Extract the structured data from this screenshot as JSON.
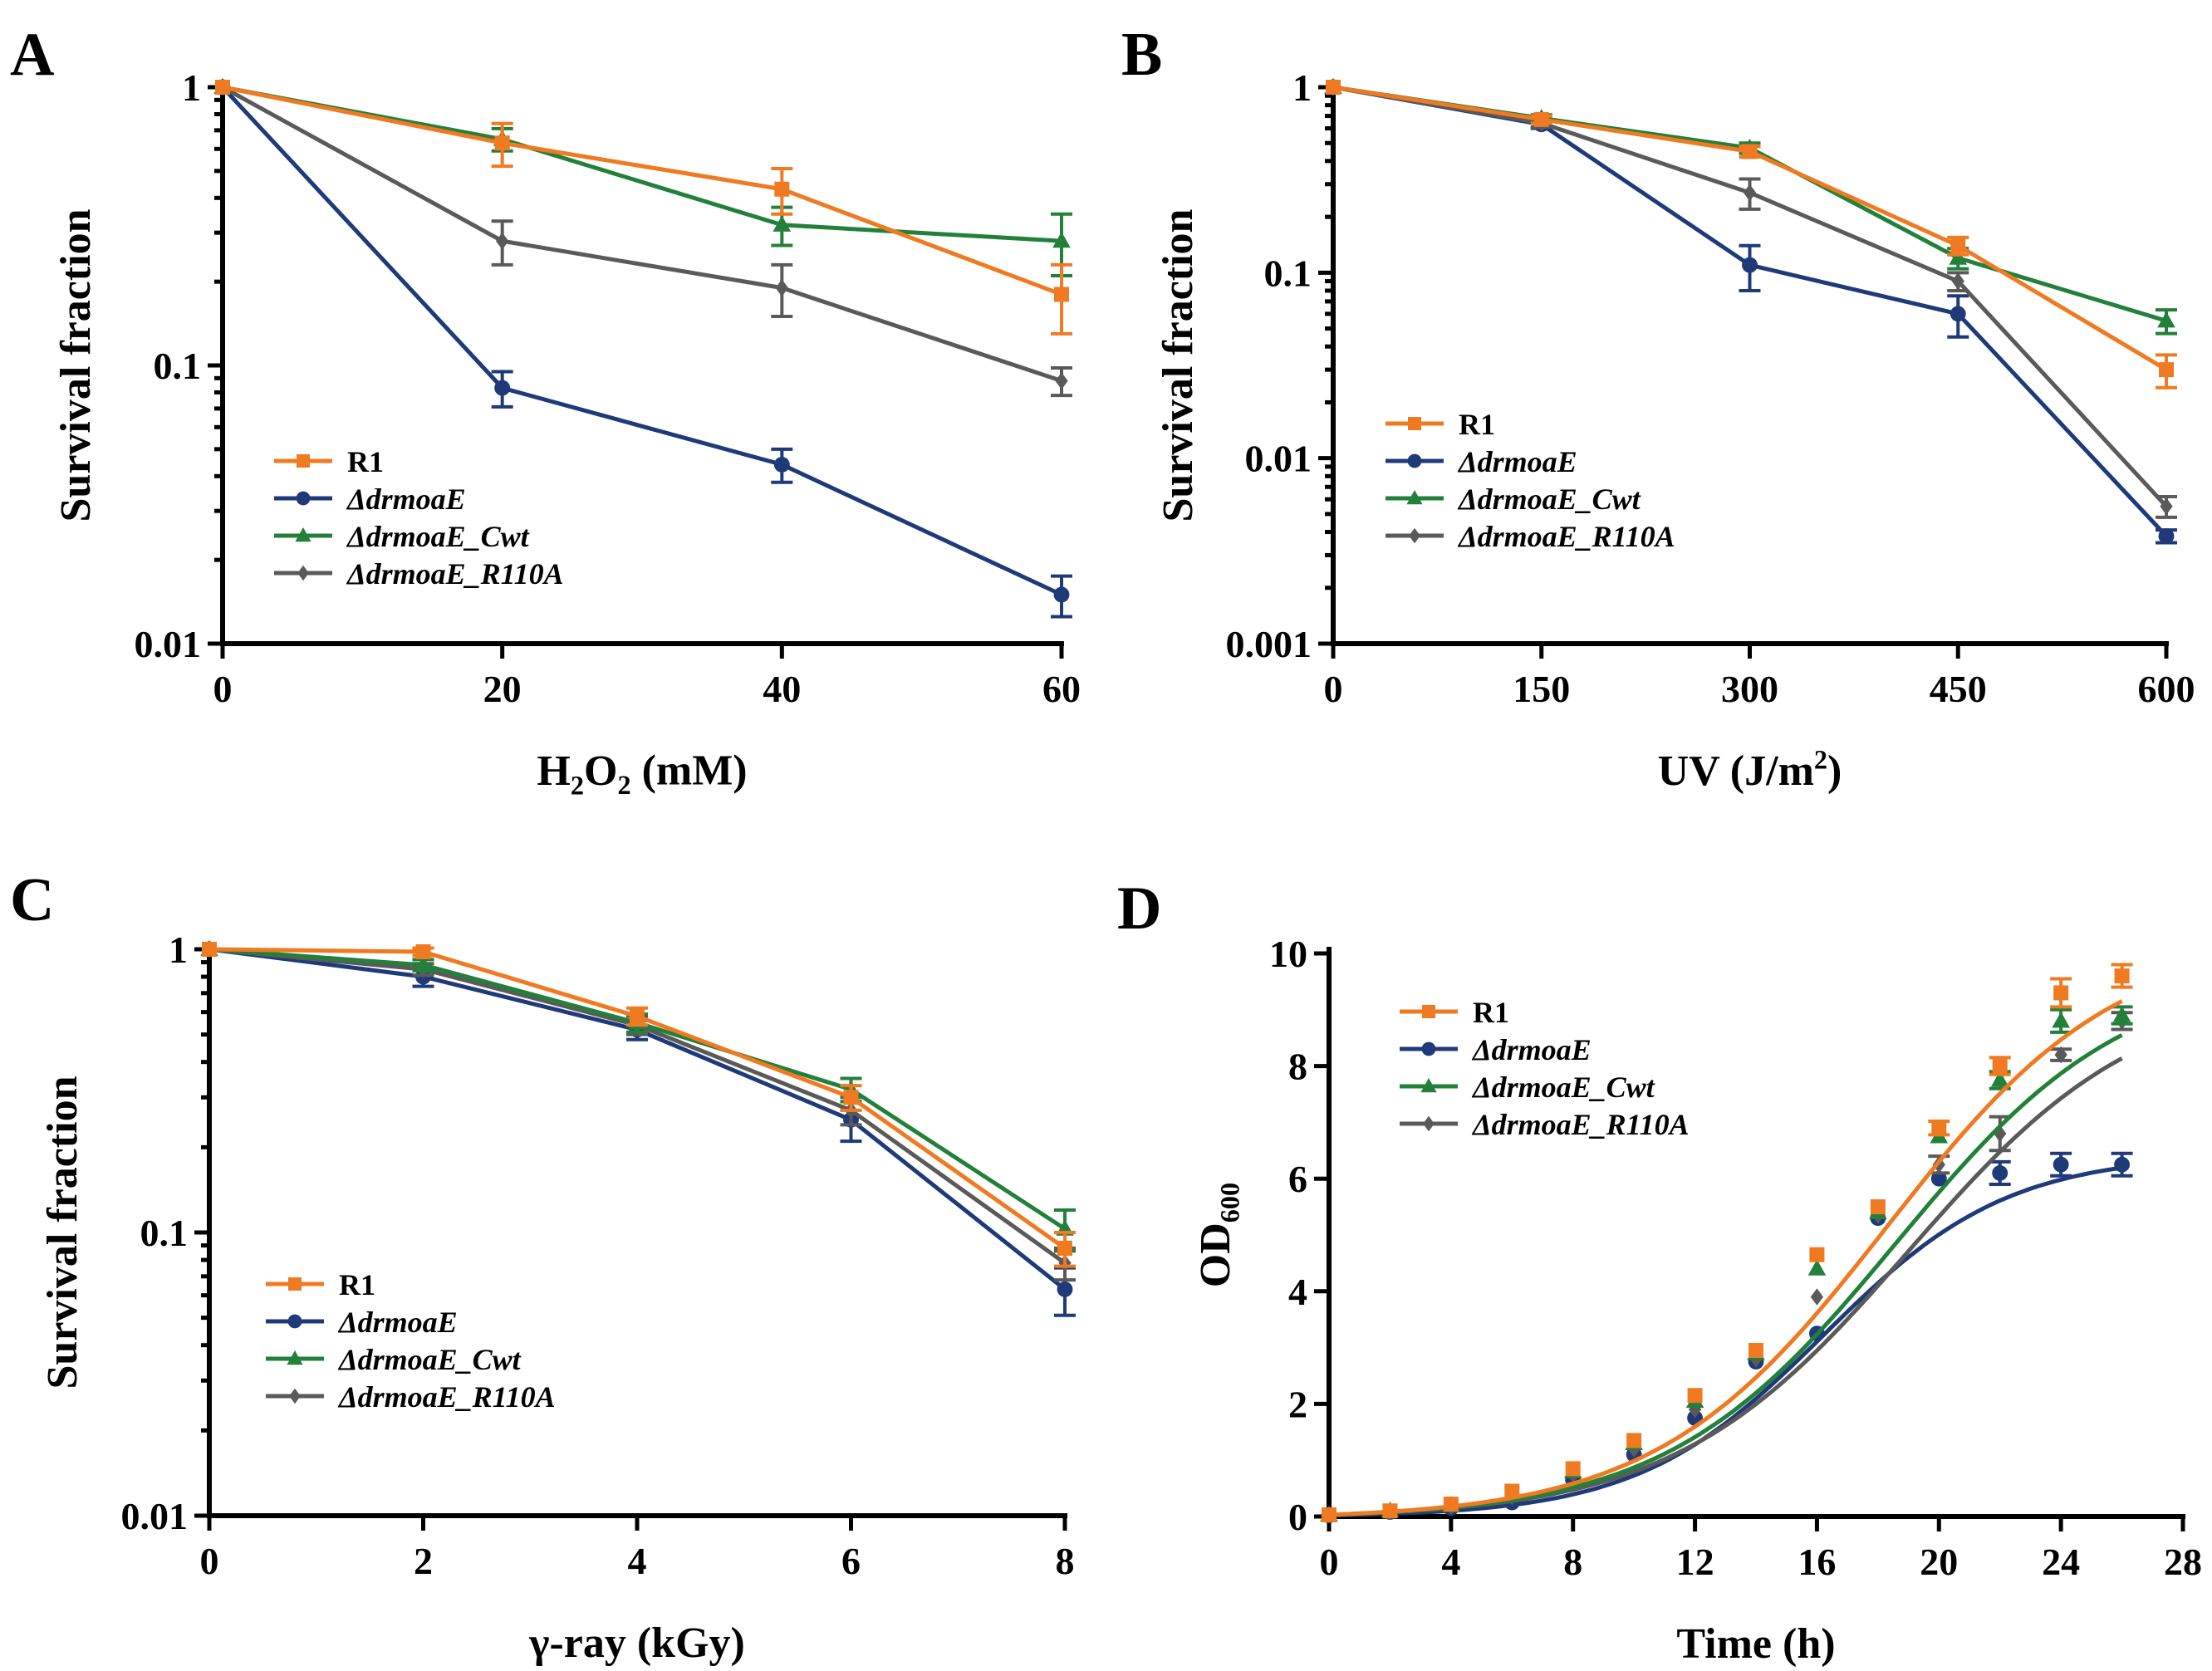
{
  "figure": {
    "colors": {
      "R1": "#F07A22",
      "KO": "#1F3A78",
      "Cwt": "#23803A",
      "R110A": "#5A5A5A"
    }
  },
  "chart_data": [
    {
      "id": "A",
      "panel_label": "A",
      "type": "line",
      "yscale": "log",
      "ylim": [
        0.01,
        1
      ],
      "xlim": [
        0,
        60
      ],
      "xticks": [
        0,
        20,
        40,
        60
      ],
      "xtick_labels": [
        "0",
        "20",
        "40",
        "60"
      ],
      "yticks": [
        1,
        0.1,
        0.01
      ],
      "ytick_labels": [
        "1",
        "0.1",
        "0.01"
      ],
      "xlabel": {
        "parts": [
          {
            "t": "H"
          },
          {
            "t": "2",
            "sub": true
          },
          {
            "t": "O"
          },
          {
            "t": "2",
            "sub": true
          },
          {
            "t": " (mM)"
          }
        ]
      },
      "ylabel": "Survival fraction",
      "legend_position": "bottom-left",
      "x": [
        0,
        20,
        40,
        60
      ],
      "series": [
        {
          "key": "R1",
          "name": "R1",
          "italic": false,
          "marker": "square",
          "values": [
            1,
            0.63,
            0.43,
            0.18
          ],
          "err": [
            0,
            0.11,
            0.08,
            0.05
          ]
        },
        {
          "key": "KO",
          "name": "ΔdrmoaE",
          "italic": true,
          "marker": "circle",
          "values": [
            1,
            0.083,
            0.044,
            0.015
          ],
          "err": [
            0,
            0.012,
            0.006,
            0.0025
          ]
        },
        {
          "key": "Cwt",
          "name": "ΔdrmoaE_Cwt",
          "italic": true,
          "marker": "triangle",
          "values": [
            1,
            0.65,
            0.32,
            0.28
          ],
          "err": [
            0,
            0.06,
            0.05,
            0.07
          ]
        },
        {
          "key": "R110A",
          "name": "ΔdrmoaE_R110A",
          "italic": true,
          "marker": "diamond",
          "values": [
            1,
            0.28,
            0.19,
            0.088
          ],
          "err": [
            0,
            0.05,
            0.04,
            0.01
          ]
        }
      ]
    },
    {
      "id": "B",
      "panel_label": "B",
      "type": "line",
      "yscale": "log",
      "ylim": [
        0.001,
        1
      ],
      "xlim": [
        0,
        600
      ],
      "xticks": [
        0,
        150,
        300,
        450,
        600
      ],
      "xtick_labels": [
        "0",
        "150",
        "300",
        "450",
        "600"
      ],
      "yticks": [
        1,
        0.1,
        0.01,
        0.001
      ],
      "ytick_labels": [
        "1",
        "0.1",
        "0.01",
        "0.001"
      ],
      "xlabel": {
        "parts": [
          {
            "t": "UV (J/m"
          },
          {
            "t": "2",
            "sup": true
          },
          {
            "t": ")"
          }
        ]
      },
      "ylabel": "Survival fraction",
      "legend_position": "bottom-left",
      "x": [
        0,
        150,
        300,
        450,
        600
      ],
      "series": [
        {
          "key": "R1",
          "name": "R1",
          "italic": false,
          "marker": "square",
          "values": [
            1,
            0.67,
            0.45,
            0.14,
            0.03
          ],
          "err": [
            0,
            0.03,
            0.03,
            0.015,
            0.006
          ]
        },
        {
          "key": "KO",
          "name": "ΔdrmoaE",
          "italic": true,
          "marker": "circle",
          "values": [
            1,
            0.63,
            0.11,
            0.06,
            0.0038
          ],
          "err": [
            0,
            0.03,
            0.03,
            0.015,
            0.0003
          ]
        },
        {
          "key": "Cwt",
          "name": "ΔdrmoaE_Cwt",
          "italic": true,
          "marker": "triangle",
          "values": [
            1,
            0.68,
            0.47,
            0.12,
            0.055
          ],
          "err": [
            0,
            0.03,
            0.03,
            0.015,
            0.008
          ]
        },
        {
          "key": "R110A",
          "name": "ΔdrmoaE_R110A",
          "italic": true,
          "marker": "diamond",
          "values": [
            1,
            0.64,
            0.27,
            0.09,
            0.0055
          ],
          "err": [
            0,
            0.03,
            0.05,
            0.01,
            0.0007
          ]
        }
      ]
    },
    {
      "id": "C",
      "panel_label": "C",
      "type": "line",
      "yscale": "log",
      "ylim": [
        0.01,
        1
      ],
      "xlim": [
        0,
        8
      ],
      "xticks": [
        0,
        2,
        4,
        6,
        8
      ],
      "xtick_labels": [
        "0",
        "2",
        "4",
        "6",
        "8"
      ],
      "yticks": [
        1,
        0.1,
        0.01
      ],
      "ytick_labels": [
        "1",
        "0.1",
        "0.01"
      ],
      "xlabel": {
        "parts": [
          {
            "t": "γ-ray (kGy)"
          }
        ]
      },
      "ylabel": "Survival fraction",
      "legend_position": "bottom-left",
      "x": [
        0,
        2,
        4,
        6,
        8
      ],
      "series": [
        {
          "key": "R1",
          "name": "R1",
          "italic": false,
          "marker": "square",
          "values": [
            1,
            0.98,
            0.58,
            0.3,
            0.088
          ],
          "err": [
            0,
            0.03,
            0.04,
            0.03,
            0.012
          ]
        },
        {
          "key": "KO",
          "name": "ΔdrmoaE",
          "italic": true,
          "marker": "circle",
          "values": [
            1,
            0.8,
            0.52,
            0.25,
            0.063
          ],
          "err": [
            0,
            0.06,
            0.04,
            0.04,
            0.012
          ]
        },
        {
          "key": "Cwt",
          "name": "ΔdrmoaE_Cwt",
          "italic": true,
          "marker": "triangle",
          "values": [
            1,
            0.88,
            0.55,
            0.32,
            0.103
          ],
          "err": [
            0,
            0.04,
            0.04,
            0.03,
            0.017
          ]
        },
        {
          "key": "R110A",
          "name": "ΔdrmoaE_R110A",
          "italic": true,
          "marker": "diamond",
          "values": [
            1,
            0.85,
            0.54,
            0.27,
            0.078
          ],
          "err": [
            0,
            0.04,
            0.04,
            0.03,
            0.01
          ]
        }
      ]
    },
    {
      "id": "D",
      "panel_label": "D",
      "type": "line",
      "yscale": "linear",
      "ylim": [
        0,
        10
      ],
      "xlim": [
        0,
        28
      ],
      "xticks": [
        0,
        4,
        8,
        12,
        16,
        20,
        24,
        28
      ],
      "xtick_labels": [
        "0",
        "4",
        "8",
        "12",
        "16",
        "20",
        "24",
        "28"
      ],
      "yticks": [
        0,
        2,
        4,
        6,
        8,
        10
      ],
      "ytick_labels": [
        "0",
        "2",
        "4",
        "6",
        "8",
        "10"
      ],
      "xlabel": {
        "parts": [
          {
            "t": "Time (h)"
          }
        ]
      },
      "ylabel": {
        "parts": [
          {
            "t": "OD"
          },
          {
            "t": "600",
            "sub": true
          }
        ]
      },
      "legend_position": "top-left",
      "curve": "smooth",
      "x": [
        0,
        2,
        4,
        6,
        8,
        10,
        12,
        14,
        16,
        18,
        20,
        22,
        24,
        26
      ],
      "series": [
        {
          "key": "R1",
          "name": "R1",
          "italic": false,
          "marker": "square",
          "values": [
            0.03,
            0.1,
            0.22,
            0.45,
            0.85,
            1.35,
            2.15,
            2.95,
            4.65,
            5.5,
            6.9,
            8.0,
            9.3,
            9.6
          ],
          "err": [
            0,
            0,
            0,
            0,
            0,
            0,
            0,
            0,
            0,
            0,
            0.12,
            0.15,
            0.25,
            0.2
          ]
        },
        {
          "key": "KO",
          "name": "ΔdrmoaE",
          "italic": true,
          "marker": "circle",
          "values": [
            0.02,
            0.08,
            0.15,
            0.25,
            0.65,
            1.1,
            1.75,
            2.75,
            3.25,
            5.3,
            6.0,
            6.1,
            6.25,
            6.25
          ],
          "err": [
            0,
            0,
            0,
            0,
            0,
            0,
            0,
            0,
            0,
            0,
            0,
            0.2,
            0.2,
            0.2
          ]
        },
        {
          "key": "Cwt",
          "name": "ΔdrmoaE_Cwt",
          "italic": true,
          "marker": "triangle",
          "values": [
            0.03,
            0.1,
            0.2,
            0.4,
            0.8,
            1.3,
            2.05,
            2.9,
            4.4,
            5.4,
            6.75,
            7.75,
            8.8,
            8.9
          ],
          "err": [
            0,
            0,
            0,
            0,
            0,
            0,
            0,
            0,
            0,
            0,
            0,
            0.15,
            0.2,
            0.15
          ]
        },
        {
          "key": "R110A",
          "name": "ΔdrmoaE_R110A",
          "italic": true,
          "marker": "diamond",
          "values": [
            0.03,
            0.09,
            0.18,
            0.35,
            0.75,
            1.2,
            1.9,
            2.8,
            3.9,
            5.35,
            6.25,
            6.8,
            8.2,
            8.8
          ],
          "err": [
            0,
            0,
            0,
            0,
            0,
            0,
            0,
            0,
            0,
            0,
            0.15,
            0.3,
            0.1,
            0.15
          ]
        }
      ],
      "fit_curves": [
        {
          "key": "R1",
          "A": 10.4,
          "k": 0.265,
          "x0": 18.3,
          "base": 0.03
        },
        {
          "key": "KO",
          "A": 6.45,
          "k": 0.33,
          "x0": 16.2,
          "base": 0.02
        },
        {
          "key": "Cwt",
          "A": 9.8,
          "k": 0.265,
          "x0": 18.6,
          "base": 0.03
        },
        {
          "key": "R110A",
          "A": 9.5,
          "k": 0.26,
          "x0": 19.0,
          "base": 0.03
        }
      ]
    }
  ]
}
